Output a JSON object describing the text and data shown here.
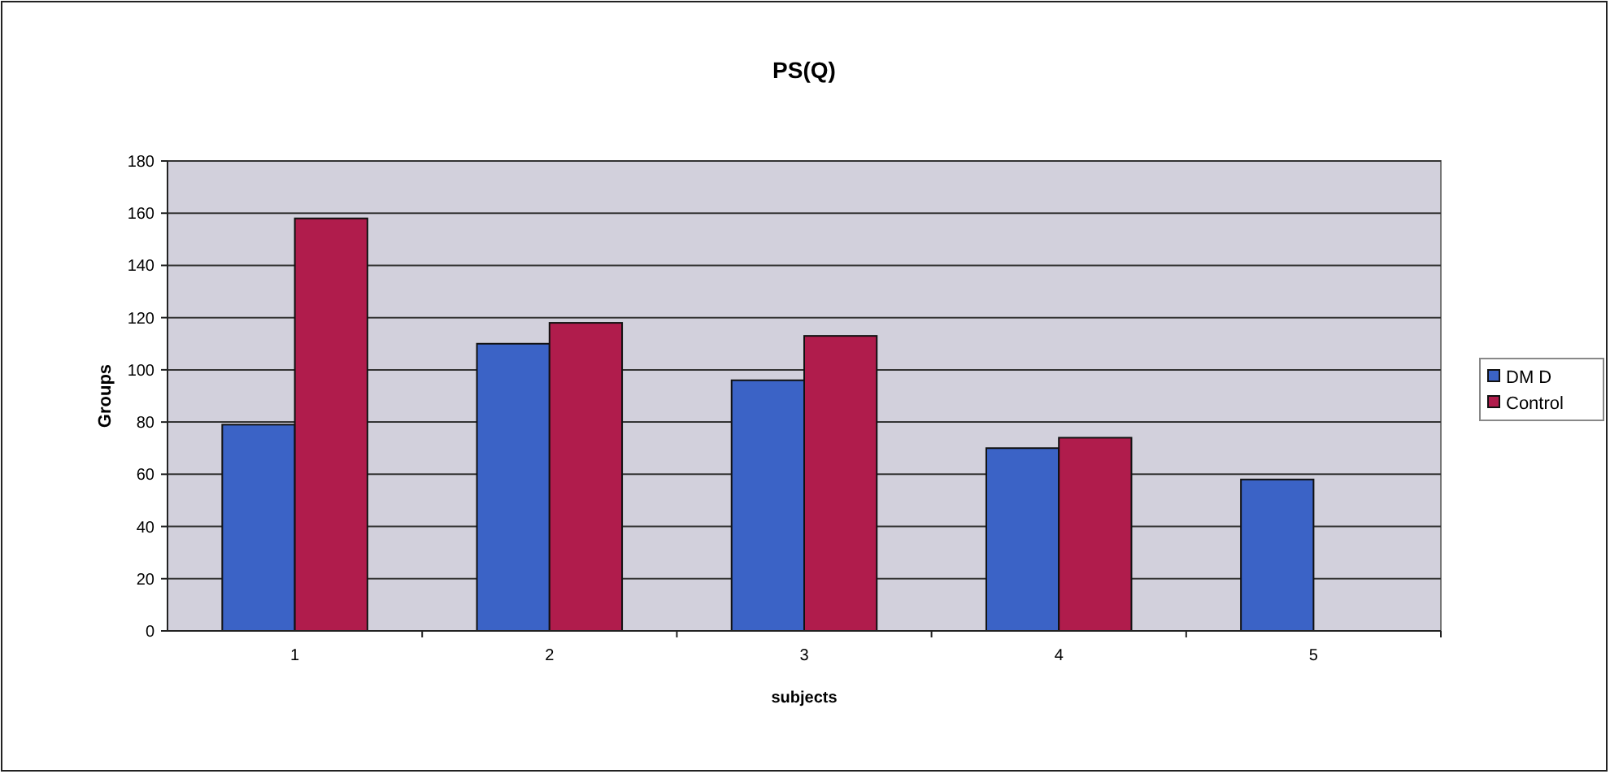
{
  "chart_data": {
    "type": "bar",
    "title": "PS(Q)",
    "xlabel": "subjects",
    "ylabel": "Groups",
    "categories": [
      "1",
      "2",
      "3",
      "4",
      "5"
    ],
    "series": [
      {
        "name": "DM D",
        "color": "#3b63c6",
        "values": [
          79,
          110,
          96,
          70,
          58
        ]
      },
      {
        "name": "Control",
        "color": "#b01c4c",
        "values": [
          158,
          118,
          113,
          74,
          null
        ]
      }
    ],
    "ylim": [
      0,
      180
    ],
    "yticks": [
      0,
      20,
      40,
      60,
      80,
      100,
      120,
      140,
      160,
      180
    ],
    "grid": "y",
    "legend": "right"
  }
}
